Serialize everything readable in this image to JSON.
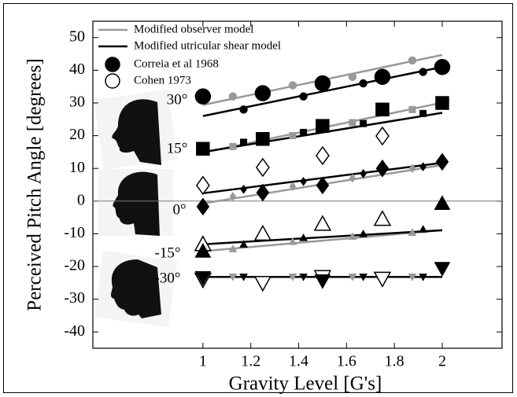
{
  "chart_data": {
    "type": "scatter",
    "xlabel": "Gravity Level [G's]",
    "ylabel": "Perceived Pitch Angle [degrees]",
    "xlim": [
      0.54,
      2.25
    ],
    "ylim": [
      -45,
      55
    ],
    "xticks": [
      1,
      1.2,
      1.4,
      1.6,
      1.8,
      2
    ],
    "yticks": [
      50,
      40,
      30,
      20,
      10,
      0,
      -10,
      -20,
      -30,
      -40
    ],
    "zero_line": true,
    "legend": [
      {
        "text": "Modified observer model",
        "color": "#999999",
        "symbol": "line"
      },
      {
        "text": "Modified utricular shear model",
        "color": "#000000",
        "symbol": "line"
      },
      {
        "text": "Correia et al 1968",
        "color": "#000000",
        "symbol": "filled-circle"
      },
      {
        "text": "Cohen 1973",
        "color": "#000000",
        "symbol": "open-circle"
      }
    ],
    "annotations": [
      "30°",
      "15°",
      "0°",
      "-15°",
      "-30°"
    ],
    "series": [
      {
        "kind": "line",
        "color": "#999999",
        "x": [
          1,
          2
        ],
        "values": [
          29.4,
          44.7
        ]
      },
      {
        "kind": "line",
        "color": "#000000",
        "x": [
          1,
          2
        ],
        "values": [
          26,
          41
        ]
      },
      {
        "kind": "line",
        "color": "#999999",
        "x": [
          1,
          2
        ],
        "values": [
          14.8,
          30.1
        ]
      },
      {
        "kind": "line",
        "color": "#000000",
        "x": [
          1,
          2
        ],
        "values": [
          15,
          27
        ]
      },
      {
        "kind": "line",
        "color": "#999999",
        "x": [
          1,
          2
        ],
        "values": [
          -0.7,
          11
        ]
      },
      {
        "kind": "line",
        "color": "#000000",
        "x": [
          1,
          2
        ],
        "values": [
          2.4,
          11.7
        ]
      },
      {
        "kind": "line",
        "color": "#999999",
        "x": [
          1,
          2
        ],
        "values": [
          -15.3,
          -8.9
        ]
      },
      {
        "kind": "line",
        "color": "#000000",
        "x": [
          1,
          2
        ],
        "values": [
          -13.2,
          -8.9
        ]
      },
      {
        "kind": "line",
        "color": "#999999",
        "x": [
          1,
          2
        ],
        "values": [
          -23.2,
          -23.2
        ]
      },
      {
        "kind": "line",
        "color": "#000000",
        "x": [
          1,
          2
        ],
        "values": [
          -23.2,
          -23.2
        ]
      },
      {
        "kind": "points",
        "marker": "circle",
        "size": "small",
        "color": "#999999",
        "x": [
          1.125,
          1.375,
          1.625,
          1.875
        ],
        "values": [
          32,
          35.4,
          38,
          43
        ]
      },
      {
        "kind": "points",
        "marker": "circle",
        "size": "small",
        "color": "#000000",
        "x": [
          1.17,
          1.42,
          1.67,
          1.92
        ],
        "values": [
          28,
          32,
          36,
          39.5
        ]
      },
      {
        "kind": "points",
        "marker": "circle",
        "size": "large",
        "color": "#000000",
        "x": [
          1,
          1.25,
          1.5,
          1.75,
          2
        ],
        "values": [
          32,
          33,
          36,
          38,
          41
        ]
      },
      {
        "kind": "points",
        "marker": "square",
        "size": "small",
        "color": "#999999",
        "x": [
          1.125,
          1.375,
          1.625,
          1.875
        ],
        "values": [
          16.7,
          20,
          24,
          28
        ]
      },
      {
        "kind": "points",
        "marker": "square",
        "size": "small",
        "color": "#000000",
        "x": [
          1.17,
          1.42,
          1.67,
          1.92
        ],
        "values": [
          18,
          21,
          23.7,
          26.8
        ]
      },
      {
        "kind": "points",
        "marker": "square",
        "size": "large",
        "color": "#000000",
        "x": [
          1,
          1.25,
          1.5,
          1.75,
          2
        ],
        "values": [
          16,
          19,
          23,
          28,
          30
        ]
      },
      {
        "kind": "points",
        "marker": "diamond",
        "size": "large",
        "color": "#000000",
        "open": true,
        "x": [
          1,
          1.25,
          1.5,
          1.75
        ],
        "values": [
          4.8,
          10.3,
          13.9,
          19.9
        ]
      },
      {
        "kind": "points",
        "marker": "diamond",
        "size": "small",
        "color": "#999999",
        "x": [
          1.125,
          1.375,
          1.625,
          1.875
        ],
        "values": [
          1.4,
          4.5,
          7,
          10
        ]
      },
      {
        "kind": "points",
        "marker": "diamond",
        "size": "small",
        "color": "#000000",
        "x": [
          1.17,
          1.42,
          1.67,
          1.92
        ],
        "values": [
          3.6,
          6,
          8.4,
          10.5
        ]
      },
      {
        "kind": "points",
        "marker": "diamond",
        "size": "large",
        "color": "#000000",
        "x": [
          1,
          1.25,
          1.5,
          1.75,
          2
        ],
        "values": [
          -1.7,
          2.6,
          4.8,
          10,
          12
        ]
      },
      {
        "kind": "points",
        "marker": "triangle-up",
        "size": "small",
        "color": "#999999",
        "x": [
          1.125,
          1.375,
          1.625,
          1.875
        ],
        "values": [
          -14.6,
          -12.4,
          -10.8,
          -9.6
        ]
      },
      {
        "kind": "points",
        "marker": "triangle-up",
        "size": "small",
        "color": "#000000",
        "x": [
          1.17,
          1.42,
          1.67,
          1.92
        ],
        "values": [
          -13.2,
          -11.2,
          -10,
          -8.6
        ]
      },
      {
        "kind": "points",
        "marker": "triangle-up",
        "size": "large",
        "color": "#000000",
        "open": true,
        "x": [
          1,
          1.25,
          1.5,
          1.75
        ],
        "values": [
          -13.2,
          -10,
          -7,
          -5.5
        ]
      },
      {
        "kind": "points",
        "marker": "triangle-up",
        "size": "large",
        "color": "#000000",
        "x": [
          1,
          2
        ],
        "values": [
          -15.3,
          -0.7
        ]
      },
      {
        "kind": "points",
        "marker": "triangle-down",
        "size": "small",
        "color": "#999999",
        "x": [
          1.125,
          1.375,
          1.625,
          1.875
        ],
        "values": [
          -23.2,
          -23.2,
          -23.2,
          -23.2
        ]
      },
      {
        "kind": "points",
        "marker": "triangle-down",
        "size": "small",
        "color": "#000000",
        "x": [
          1.17,
          1.42,
          1.67,
          1.92
        ],
        "values": [
          -23.2,
          -23.2,
          -23.2,
          -23.2
        ]
      },
      {
        "kind": "points",
        "marker": "triangle-down",
        "size": "large",
        "color": "#000000",
        "open": true,
        "x": [
          1,
          1.25,
          1.5,
          1.75
        ],
        "values": [
          -24,
          -25,
          -23.2,
          -23.7
        ]
      },
      {
        "kind": "points",
        "marker": "triangle-down",
        "size": "large",
        "color": "#000000",
        "x": [
          1,
          1.5,
          2
        ],
        "values": [
          -23.4,
          -24.4,
          -20.6
        ]
      }
    ]
  }
}
